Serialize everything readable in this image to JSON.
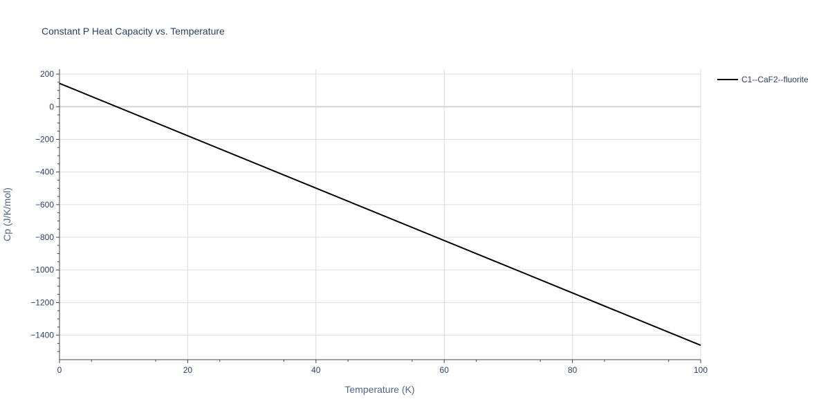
{
  "chart_data": {
    "type": "line",
    "title": "Constant P Heat Capacity vs. Temperature",
    "xlabel": "Temperature (K)",
    "ylabel": "Cp (J/K/mol)",
    "xlim": [
      0,
      100
    ],
    "ylim": [
      -1550,
      230
    ],
    "x_ticks": [
      0,
      20,
      40,
      60,
      80,
      100
    ],
    "y_ticks": [
      200,
      0,
      -200,
      -400,
      -600,
      -800,
      -1000,
      -1200,
      -1400
    ],
    "x_tick_labels": [
      "0",
      "20",
      "40",
      "60",
      "80",
      "100"
    ],
    "y_tick_labels": [
      "200",
      "0",
      "−200",
      "−400",
      "−600",
      "−800",
      "−1000",
      "−1200",
      "−1400"
    ],
    "grid": true,
    "legend_position": "top-right",
    "series": [
      {
        "name": "C1--CaF2--fluorite",
        "color": "#000000",
        "x": [
          0,
          100
        ],
        "y": [
          143,
          -1462
        ]
      }
    ]
  }
}
